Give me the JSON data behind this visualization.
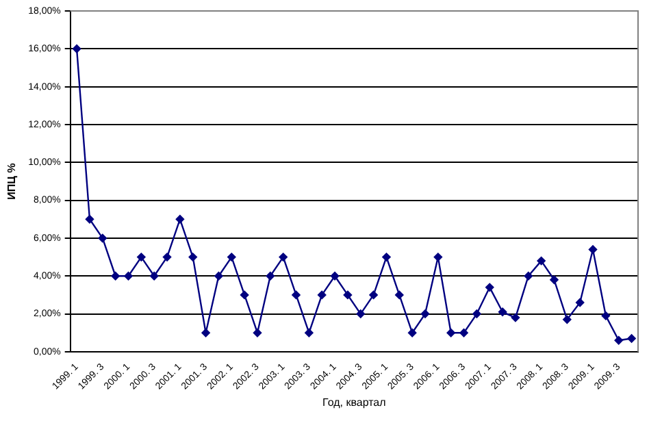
{
  "chart_data": {
    "type": "line",
    "xlabel": "Год, квартал",
    "ylabel": "ИПЦ %",
    "categories": [
      "1999. 1",
      null,
      "1999. 3",
      null,
      "2000. 1",
      null,
      "2000. 3",
      null,
      "2001. 1",
      null,
      "2001. 3",
      null,
      "2002. 1",
      null,
      "2002. 3",
      null,
      "2003. 1",
      null,
      "2003. 3",
      null,
      "2004. 1",
      null,
      "2004. 3",
      null,
      "2005. 1",
      null,
      "2005. 3",
      null,
      "2006. 1",
      null,
      "2006. 3",
      null,
      "2007. 1",
      null,
      "2007. 3",
      null,
      "2008. 1",
      null,
      "2008. 3",
      null,
      "2009. 1",
      null,
      "2009. 3",
      null
    ],
    "series": [
      {
        "color": "#000080",
        "values": [
          16,
          7,
          6,
          4,
          4,
          5,
          4,
          5,
          7,
          5,
          1,
          4,
          5,
          3,
          1,
          4,
          5,
          3,
          1,
          3,
          4,
          3,
          2,
          3,
          5,
          3,
          1,
          2,
          5,
          1,
          1,
          2,
          3.4,
          2.1,
          1.8,
          4,
          4.8,
          3.8,
          1.7,
          2.6,
          5.4,
          1.9,
          0.6,
          0.7
        ]
      }
    ],
    "ylim": [
      0,
      18
    ],
    "yticks": [
      {
        "value": 0,
        "label": "0,00%"
      },
      {
        "value": 2,
        "label": "2,00%"
      },
      {
        "value": 4,
        "label": "4,00%"
      },
      {
        "value": 6,
        "label": "6,00%"
      },
      {
        "value": 8,
        "label": "8,00%"
      },
      {
        "value": 10,
        "label": "10,00%"
      },
      {
        "value": 12,
        "label": "12,00%"
      },
      {
        "value": 14,
        "label": "14,00%"
      },
      {
        "value": 16,
        "label": "16,00%"
      },
      {
        "value": 18,
        "label": "18,00%"
      }
    ],
    "grid": "y",
    "legend": false,
    "marker": "diamond",
    "line_style": "solid"
  }
}
